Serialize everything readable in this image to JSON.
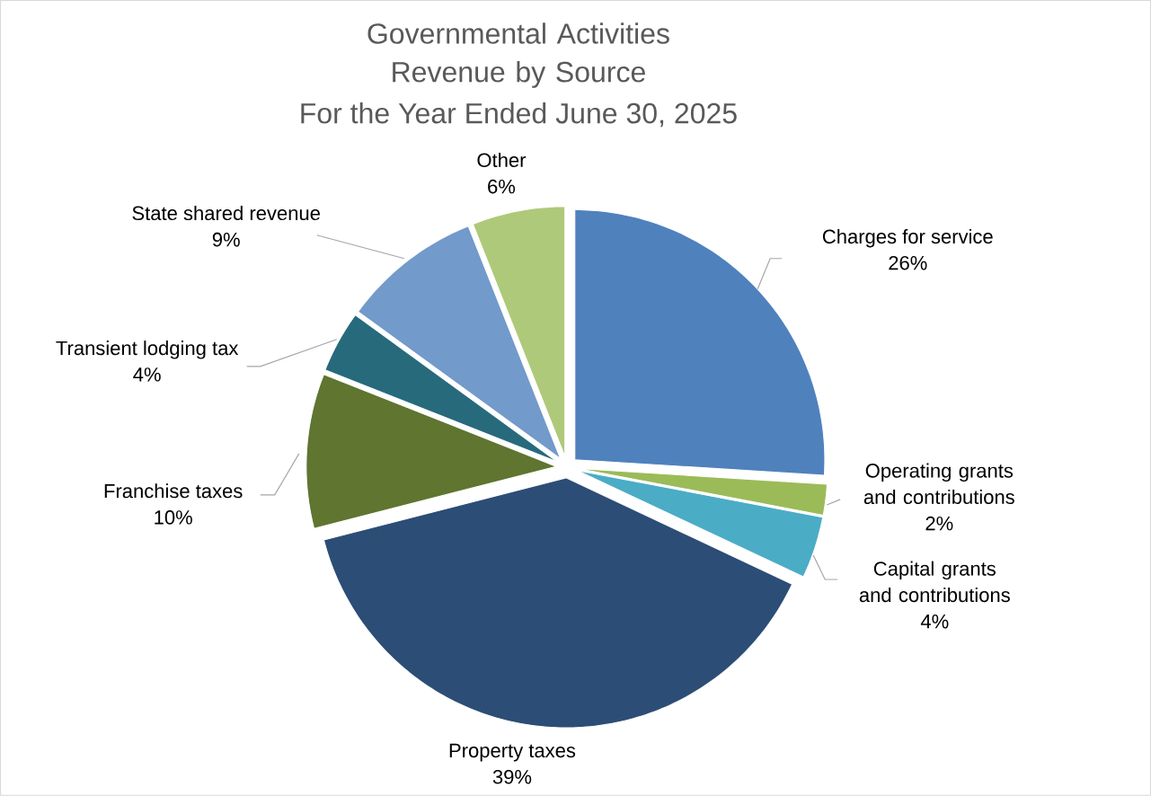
{
  "chart_data": {
    "type": "pie",
    "title": "Governmental Activities Revenue by Source",
    "subtitle": "For the Year Ended June 30, 2025",
    "categories": [
      "Charges for service",
      "Operating grants and contributions",
      "Capital grants and contributions",
      "Property taxes",
      "Franchise taxes",
      "Transient lodging tax",
      "State shared revenue",
      "Other"
    ],
    "values": [
      26,
      2,
      4,
      39,
      10,
      4,
      9,
      6
    ],
    "value_labels": [
      "26%",
      "2%",
      "4%",
      "39%",
      "10%",
      "4%",
      "9%",
      "6%"
    ],
    "colors": [
      "#4f81bd",
      "#9bbb59",
      "#4bacc6",
      "#2c4d75",
      "#5f7530",
      "#276a7c",
      "#729aca",
      "#afc97a"
    ]
  }
}
